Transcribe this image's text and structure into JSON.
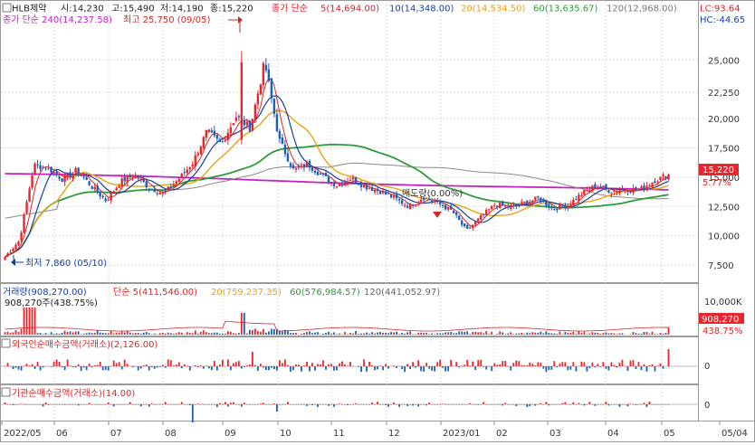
{
  "header": {
    "icon": "chart-collapse-icon",
    "stock_name": "HLB제약",
    "open_label": "시:14,230",
    "high_label": "고:15,490",
    "low_label": "저:14,190",
    "close_label": "종:15,220",
    "ma_title": "종가 단순",
    "ma5": "5(14,694.00)",
    "ma10": "10(14,348.00)",
    "ma20": "20(14,534.50)",
    "ma60": "60(13,635.67)",
    "ma120": "120(12,968.00)",
    "ma240_line": "종가 단순 240(14,237.58)",
    "lc": "LC:93.64",
    "hc": "HC:-44.65"
  },
  "price_pane": {
    "y_ticks": [
      "25,000",
      "22,250",
      "20,000",
      "17,500",
      "15,000",
      "12,500",
      "10,000",
      "7,500"
    ],
    "high_annotation": "최고 25,750 (09/05)",
    "low_annotation": "최저 7,860 (05/10)",
    "mid_annotation": "매도량(0.00%)",
    "last_price_tag": "15,220",
    "pct_tag": "5.77%"
  },
  "volume_pane": {
    "title": "거래량(908,270.00)",
    "ma5": "단순 5(411,546.00)",
    "ma20": "20(759,237.35)",
    "ma60": "60(576,984.57)",
    "ma120": "120(441,052.97)",
    "sub": "908,270주(438.75%)",
    "y_tick": "10,000K",
    "last_tag": "908,270",
    "pct_tag": "438.75%"
  },
  "foreign_pane": {
    "title": "외국인순매수금액(거래소)(2,126.00)",
    "zero": "0"
  },
  "inst_pane": {
    "title": "기관순매수금액(거래소)(14.00)",
    "zero": "0"
  },
  "x_axis": [
    "2022/05",
    "06",
    "07",
    "08",
    "09",
    "10",
    "11",
    "12",
    "2023/01",
    "02",
    "03",
    "04",
    "05",
    "05/04"
  ],
  "colors": {
    "up": "#e8262d",
    "down": "#1f5fb8",
    "ma5": "#d62728",
    "ma10": "#1a3ea0",
    "ma20": "#e8a317",
    "ma60": "#2e9b3a",
    "ma120": "#888888",
    "ma240": "#c024c0"
  },
  "chart_data": {
    "type": "candlestick",
    "y_range": [
      6500,
      27800
    ],
    "ma_last": {
      "ma5": 14694,
      "ma10": 14348,
      "ma20": 14534.5,
      "ma60": 13635.67,
      "ma120": 12968,
      "ma240": 14237.58
    },
    "close_path": [
      8200,
      9600,
      16000,
      15800,
      14800,
      15600,
      14200,
      13000,
      14600,
      15200,
      14100,
      13600,
      14800,
      16200,
      18900,
      17800,
      20200,
      19200,
      24800,
      18200,
      15600,
      16100,
      15100,
      14300,
      14900,
      14200,
      13800,
      13200,
      12500,
      13300,
      12800,
      12100,
      10400,
      11600,
      12700,
      12400,
      12800,
      13200,
      12300,
      12600,
      13600,
      14300,
      13800,
      14000,
      13900,
      14700,
      15220
    ],
    "last_close": 15220
  }
}
